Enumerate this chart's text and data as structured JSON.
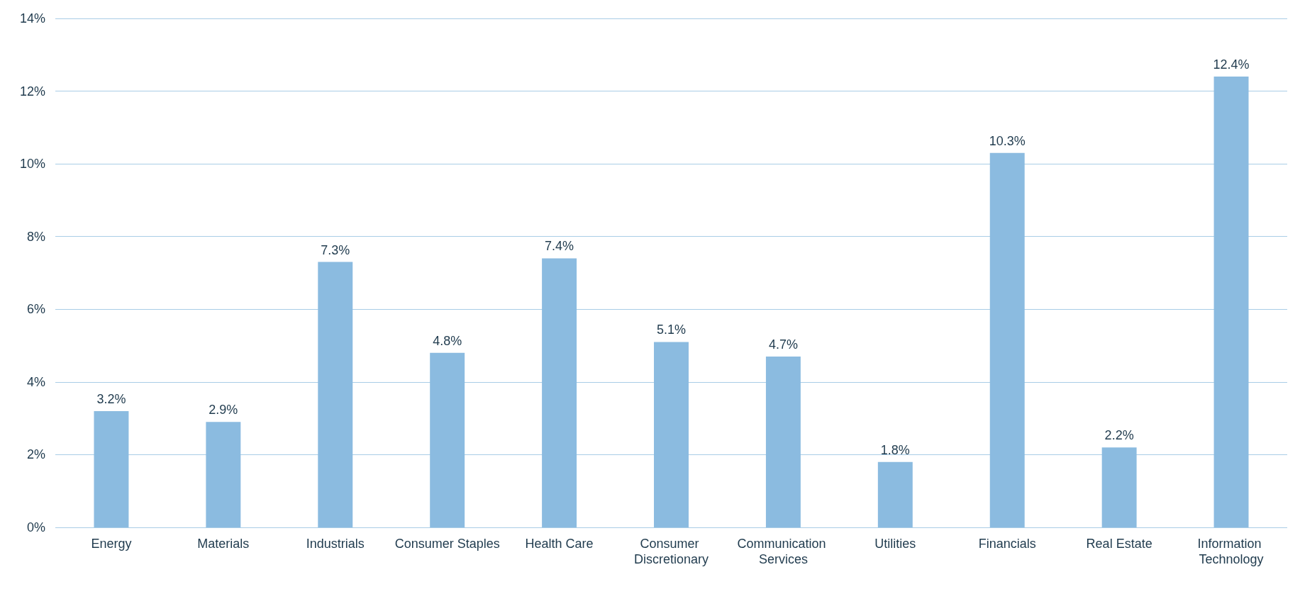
{
  "chart_data": {
    "type": "bar",
    "categories": [
      "Energy",
      "Materials",
      "Industrials",
      "Consumer Staples",
      "Health Care",
      "Consumer Discretionary",
      "Communication Services",
      "Utilities",
      "Financials",
      "Real Estate",
      "Information Technology"
    ],
    "values": [
      3.2,
      2.9,
      7.3,
      4.8,
      7.4,
      5.1,
      4.7,
      1.8,
      10.3,
      2.2,
      12.4
    ],
    "value_labels": [
      "3.2%",
      "2.9%",
      "7.3%",
      "4.8%",
      "7.4%",
      "5.1%",
      "4.7%",
      "1.8%",
      "10.3%",
      "2.2%",
      "12.4%"
    ],
    "color": "#8bbbe0",
    "ylim": [
      0,
      14
    ],
    "yticks": [
      {
        "value": 0,
        "label": "0%"
      },
      {
        "value": 2,
        "label": "2%"
      },
      {
        "value": 4,
        "label": "4%"
      },
      {
        "value": 6,
        "label": "6%"
      },
      {
        "value": 8,
        "label": "8%"
      },
      {
        "value": 10,
        "label": "10%"
      },
      {
        "value": 12,
        "label": "12%"
      },
      {
        "value": 14,
        "label": "14%"
      }
    ],
    "grid": "y"
  }
}
